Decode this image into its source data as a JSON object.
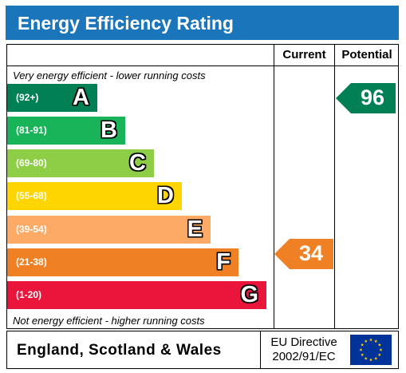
{
  "title": "Energy Efficiency Rating",
  "columns": {
    "current": "Current",
    "potential": "Potential"
  },
  "top_caption": "Very energy efficient - lower running costs",
  "bottom_caption": "Not energy efficient - higher running costs",
  "bands": [
    {
      "range": "(92+)",
      "letter": "A",
      "color": "#008054"
    },
    {
      "range": "(81-91)",
      "letter": "B",
      "color": "#19b459"
    },
    {
      "range": "(69-80)",
      "letter": "C",
      "color": "#8dce46"
    },
    {
      "range": "(55-68)",
      "letter": "D",
      "color": "#ffd500"
    },
    {
      "range": "(39-54)",
      "letter": "E",
      "color": "#fcaa65"
    },
    {
      "range": "(21-38)",
      "letter": "F",
      "color": "#ef8023"
    },
    {
      "range": "(1-20)",
      "letter": "G",
      "color": "#e9153b"
    }
  ],
  "current": {
    "value": "34",
    "band": "F",
    "color": "#ef8023"
  },
  "potential": {
    "value": "96",
    "band": "A",
    "color": "#008054"
  },
  "footer": {
    "region": "England, Scotland & Wales",
    "directive_line1": "EU Directive",
    "directive_line2": "2002/91/EC"
  },
  "colors": {
    "title_bar": "#1b75bb",
    "eu_flag": "#003399",
    "eu_star": "#ffcc00"
  }
}
